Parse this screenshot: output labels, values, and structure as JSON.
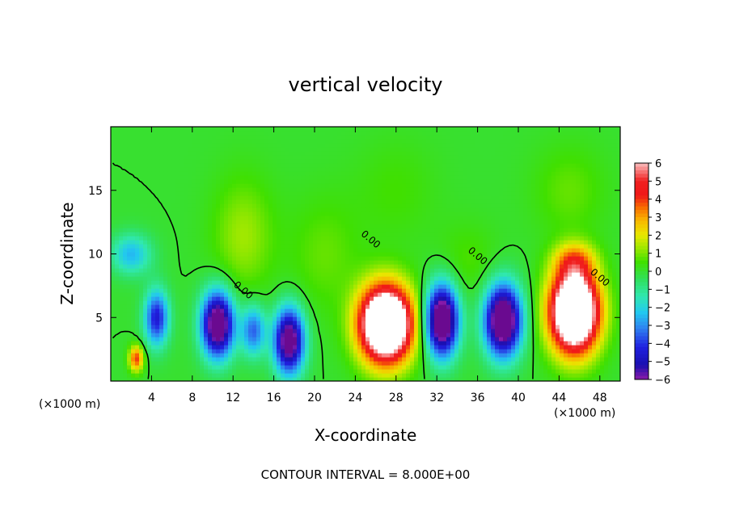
{
  "chart_data": {
    "type": "heatmap",
    "title": "vertical velocity",
    "xlabel": "X-coordinate",
    "ylabel": "Z-coordinate",
    "x_unit": "(×1000 m)",
    "xlim": [
      0,
      50
    ],
    "ylim": [
      0,
      20
    ],
    "x_ticks": [
      4,
      8,
      12,
      16,
      20,
      24,
      28,
      32,
      36,
      40,
      44,
      48
    ],
    "y_ticks": [
      5,
      10,
      15
    ],
    "contour_label": "0.00",
    "footer": "CONTOUR INTERVAL = 8.000E+00",
    "colorbar": {
      "ticks": [
        6,
        5,
        4,
        3,
        2,
        1,
        0,
        -1,
        -2,
        -3,
        -4,
        -5,
        -6
      ],
      "range": [
        -6,
        6
      ],
      "stops": [
        {
          "v": -6,
          "color": "#8a1aa8"
        },
        {
          "v": -5.2,
          "color": "#1a0fb0"
        },
        {
          "v": -4.2,
          "color": "#2020e0"
        },
        {
          "v": -3.2,
          "color": "#2f80f0"
        },
        {
          "v": -2.3,
          "color": "#22c8f0"
        },
        {
          "v": -1.4,
          "color": "#30e8b0"
        },
        {
          "v": -0.5,
          "color": "#30e060"
        },
        {
          "v": 0.5,
          "color": "#40e000"
        },
        {
          "v": 1.3,
          "color": "#a0e800"
        },
        {
          "v": 2.0,
          "color": "#e8e800"
        },
        {
          "v": 2.8,
          "color": "#f8b800"
        },
        {
          "v": 3.5,
          "color": "#f87000"
        },
        {
          "v": 4.2,
          "color": "#f01818"
        },
        {
          "v": 5.0,
          "color": "#f02020"
        },
        {
          "v": 5.6,
          "color": "#f88080"
        },
        {
          "v": 6,
          "color": "#f8c0c0"
        }
      ]
    },
    "cells": [
      {
        "x": 4.5,
        "z": 5.0,
        "w": -4.5,
        "sx": 1.2,
        "sz": 2.2
      },
      {
        "x": 2.5,
        "z": 1.8,
        "w": 4.0,
        "sx": 0.7,
        "sz": 1.0
      },
      {
        "x": 10.5,
        "z": 4.5,
        "w": -7.5,
        "sx": 1.6,
        "sz": 2.6
      },
      {
        "x": 14.0,
        "z": 4.0,
        "w": -3.5,
        "sx": 1.2,
        "sz": 2.0
      },
      {
        "x": 17.5,
        "z": 3.2,
        "w": -7.0,
        "sx": 1.5,
        "sz": 2.6
      },
      {
        "x": 27.0,
        "z": 4.5,
        "w": 11.0,
        "sx": 2.6,
        "sz": 3.0
      },
      {
        "x": 32.5,
        "z": 4.8,
        "w": -8.0,
        "sx": 1.6,
        "sz": 2.8
      },
      {
        "x": 38.5,
        "z": 4.8,
        "w": -8.0,
        "sx": 1.8,
        "sz": 2.8
      },
      {
        "x": 45.5,
        "z": 5.5,
        "w": 11.0,
        "sx": 2.4,
        "sz": 3.2
      },
      {
        "x": 2.0,
        "z": 10.0,
        "w": -2.5,
        "sx": 2.0,
        "sz": 1.6
      },
      {
        "x": 13.0,
        "z": 11.5,
        "w": 1.3,
        "sx": 3.0,
        "sz": 4.5
      },
      {
        "x": 21.0,
        "z": 10.0,
        "w": 0.8,
        "sx": 3.5,
        "sz": 4.5
      },
      {
        "x": 35.0,
        "z": 9.5,
        "w": 0.6,
        "sx": 3.0,
        "sz": 3.0
      },
      {
        "x": 45.5,
        "z": 9.5,
        "w": 2.5,
        "sx": 2.0,
        "sz": 1.4
      },
      {
        "x": 45.0,
        "z": 15.0,
        "w": 0.8,
        "sx": 3.5,
        "sz": 3.5
      },
      {
        "x": 28.0,
        "z": 15.0,
        "w": 0.5,
        "sx": 4.0,
        "sz": 4.0
      }
    ]
  }
}
